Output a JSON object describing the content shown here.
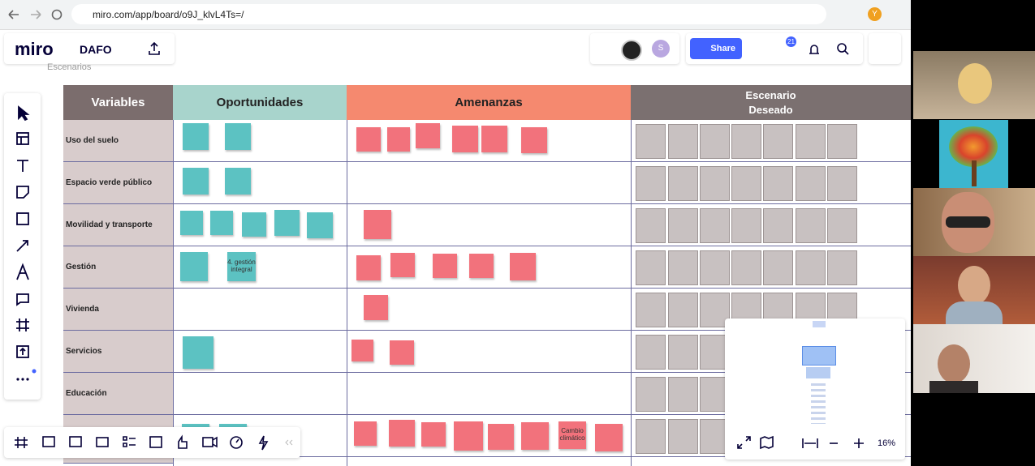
{
  "browser": {
    "url": "miro.com/app/board/o9J_klvL4Ts=/"
  },
  "board": {
    "logo": "miro",
    "name": "DAFO",
    "share_label": "Share",
    "notifications": "21",
    "avatar_user": "Y",
    "avatar_collab": "S",
    "frame_label": "Escenarios",
    "zoom": "16%"
  },
  "table": {
    "headers": [
      "Variables",
      "Oportunidades",
      "Amenanzas",
      [
        "Escenario",
        "Deseado"
      ]
    ],
    "rows": [
      "Uso del suelo",
      "Espacio verde  público",
      "Movilidad y transporte",
      "Gestión",
      "Vivienda",
      "Servicios",
      "Educación"
    ],
    "notes": [
      "4. gestión integral",
      "Cambio climático"
    ]
  }
}
